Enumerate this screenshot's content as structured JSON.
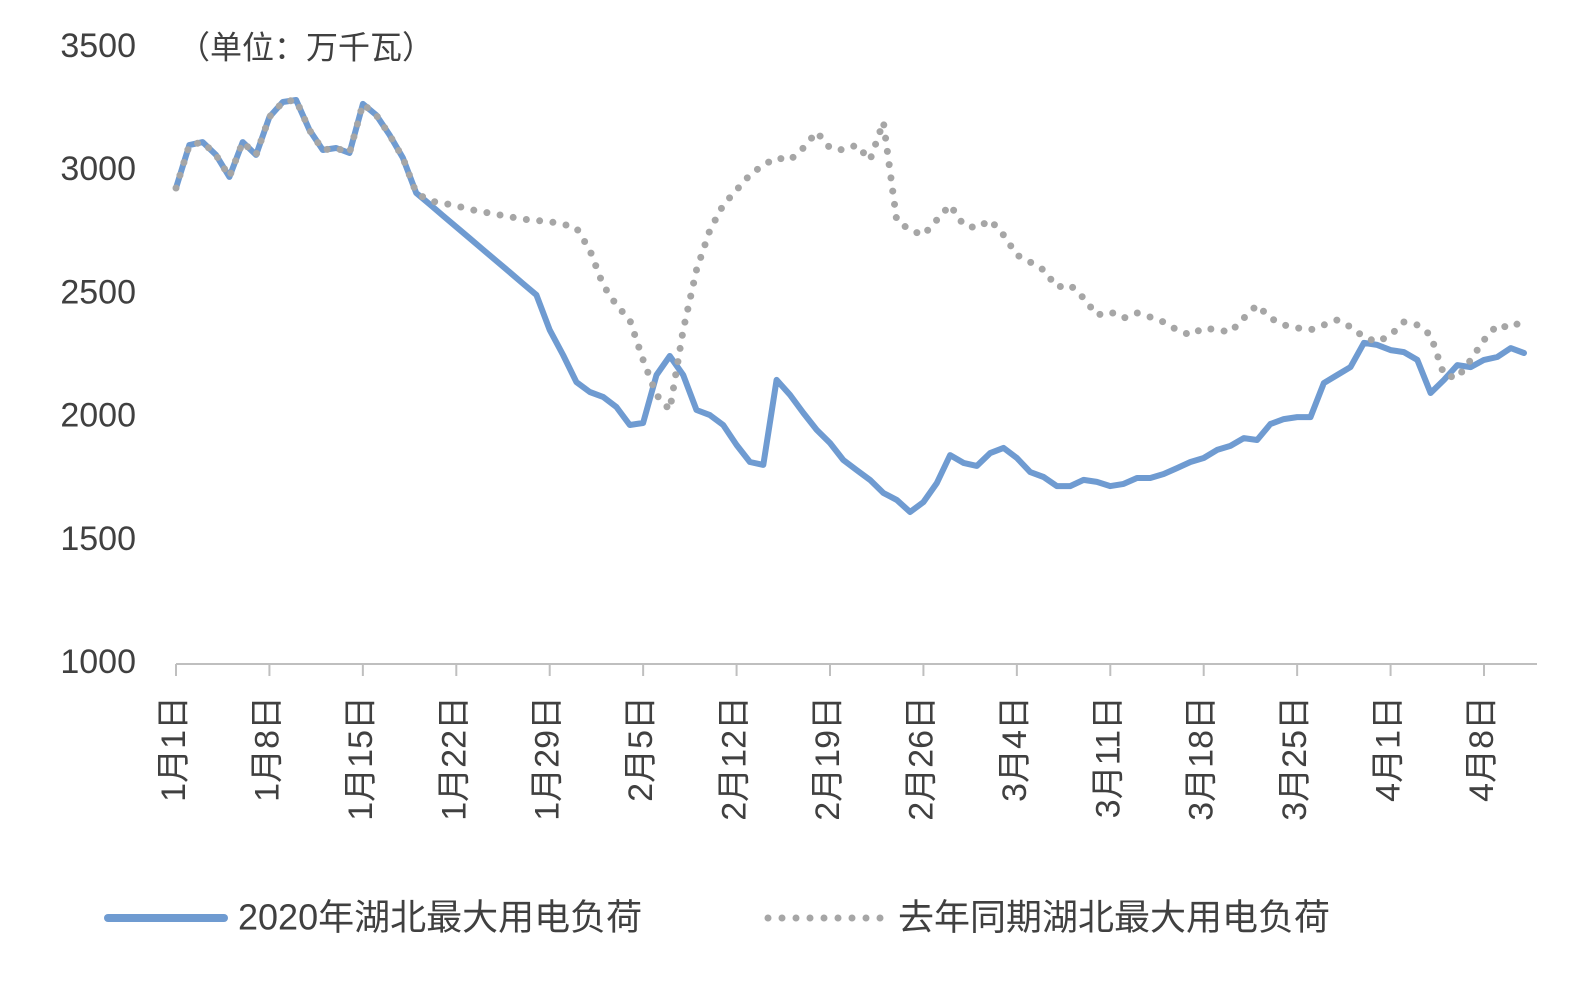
{
  "chart_data": {
    "type": "line",
    "annotation": "（单位：万千瓦）",
    "categories": [
      "1月1日",
      null,
      null,
      null,
      null,
      null,
      null,
      "1月8日",
      null,
      null,
      null,
      null,
      null,
      null,
      "1月15日",
      null,
      null,
      null,
      null,
      null,
      null,
      "1月22日",
      null,
      null,
      null,
      null,
      null,
      null,
      "1月29日",
      null,
      null,
      null,
      null,
      null,
      null,
      "2月5日",
      null,
      null,
      null,
      null,
      null,
      null,
      "2月12日",
      null,
      null,
      null,
      null,
      null,
      null,
      "2月19日",
      null,
      null,
      null,
      null,
      null,
      null,
      "2月26日",
      null,
      null,
      null,
      null,
      null,
      null,
      "3月4日",
      null,
      null,
      null,
      null,
      null,
      null,
      "3月11日",
      null,
      null,
      null,
      null,
      null,
      null,
      "3月18日",
      null,
      null,
      null,
      null,
      null,
      null,
      "3月25日",
      null,
      null,
      null,
      null,
      null,
      null,
      "4月1日",
      null,
      null,
      null,
      null,
      null,
      null,
      "4月8日",
      null,
      null,
      null
    ],
    "series": [
      {
        "name": "2020年湖北最大用电负荷",
        "color": "#6f9bd1",
        "style": "solid",
        "values": [
          2932,
          3106,
          3118,
          3066,
          2977,
          3118,
          3066,
          3220,
          3281,
          3289,
          3167,
          3086,
          3094,
          3074,
          3273,
          3228,
          3147,
          3054,
          2912,
          2866,
          2820,
          2774,
          2728,
          2682,
          2636,
          2590,
          2544,
          2498,
          2356,
          2254,
          2144,
          2104,
          2084,
          2043,
          1970,
          1978,
          2173,
          2250,
          2173,
          2031,
          2010,
          1970,
          1889,
          1820,
          1808,
          2153,
          2092,
          2019,
          1950,
          1897,
          1828,
          1787,
          1747,
          1694,
          1666,
          1617,
          1657,
          1734,
          1848,
          1816,
          1804,
          1856,
          1877,
          1836,
          1779,
          1759,
          1722,
          1722,
          1747,
          1739,
          1722,
          1731,
          1755,
          1755,
          1771,
          1795,
          1820,
          1836,
          1869,
          1885,
          1917,
          1909,
          1974,
          1994,
          2002,
          2002,
          2140,
          2173,
          2205,
          2303,
          2295,
          2274,
          2266,
          2234,
          2100,
          2153,
          2213,
          2205,
          2234,
          2246,
          2282,
          2262
        ]
      },
      {
        "name": "去年同期湖北最大用电负荷",
        "color": "#a6a6a6",
        "style": "dotted",
        "values": [
          2932,
          3106,
          3118,
          3066,
          2977,
          3118,
          3066,
          3220,
          3281,
          3289,
          3167,
          3086,
          3094,
          3074,
          3273,
          3228,
          3147,
          3054,
          2912,
          2880,
          2870,
          2860,
          2845,
          2835,
          2825,
          2815,
          2805,
          2800,
          2795,
          2785,
          2770,
          2680,
          2538,
          2457,
          2396,
          2234,
          2092,
          2031,
          2356,
          2599,
          2761,
          2863,
          2924,
          2985,
          3025,
          3054,
          3045,
          3094,
          3159,
          3094,
          3086,
          3106,
          3045,
          3200,
          2800,
          2761,
          2741,
          2802,
          2863,
          2782,
          2769,
          2802,
          2741,
          2660,
          2631,
          2599,
          2530,
          2538,
          2485,
          2416,
          2429,
          2404,
          2425,
          2408,
          2388,
          2356,
          2335,
          2364,
          2356,
          2347,
          2404,
          2457,
          2404,
          2376,
          2364,
          2356,
          2376,
          2396,
          2368,
          2327,
          2307,
          2335,
          2388,
          2376,
          2335,
          2173,
          2161,
          2234,
          2315,
          2376,
          2364,
          2396
        ]
      }
    ],
    "ylim": [
      1000,
      3500
    ],
    "yticks": [
      1000,
      1500,
      2000,
      2500,
      3000,
      3500
    ],
    "grid": false,
    "legend": "bottom"
  }
}
